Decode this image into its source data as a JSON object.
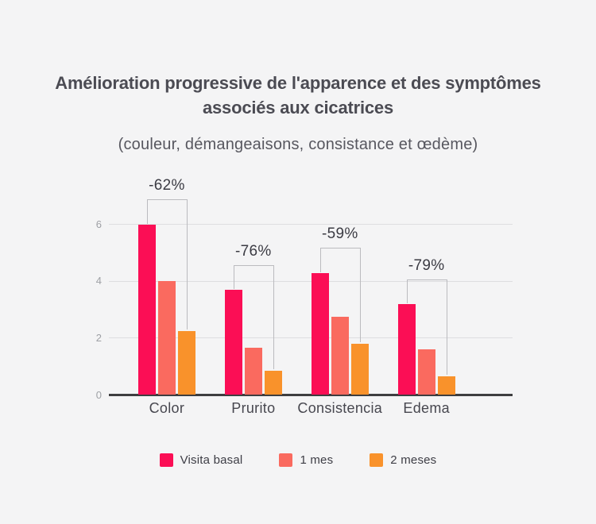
{
  "page": {
    "background_color": "#F4F4F5"
  },
  "header": {
    "title_line1": "Amélioration progressive de l'apparence et des symptômes",
    "title_line2": "associés aux cicatrices",
    "subtitle": "(couleur, démangeaisons, consistance et œdème)"
  },
  "chart_data": {
    "type": "bar",
    "title": "Amélioration progressive de l'apparence et des symptômes associés aux cicatrices",
    "subtitle": "(couleur, démangeaisons, consistance et œdème)",
    "xlabel": "",
    "ylabel": "",
    "categories": [
      "Color",
      "Prurito",
      "Consistencia",
      "Edema"
    ],
    "series": [
      {
        "name": "Visita basal",
        "color": "#FB0E55",
        "values": [
          6.0,
          3.7,
          4.3,
          3.2
        ]
      },
      {
        "name": "1 mes",
        "color": "#FA6A5F",
        "values": [
          4.0,
          1.65,
          2.75,
          1.6
        ]
      },
      {
        "name": "2 meses",
        "color": "#F9922B",
        "values": [
          2.25,
          0.85,
          1.8,
          0.65
        ]
      }
    ],
    "annotations": [
      {
        "category": "Color",
        "label": "-62%"
      },
      {
        "category": "Prurito",
        "label": "-76%"
      },
      {
        "category": "Consistencia",
        "label": "-59%"
      },
      {
        "category": "Edema",
        "label": "-79%"
      }
    ],
    "y_ticks": [
      0,
      2,
      4,
      6
    ],
    "ylim": [
      0,
      6.8
    ],
    "grid": true,
    "legend_position": "bottom"
  },
  "colors": {
    "background": "#F4F4F5",
    "title_text": "#4B4B53",
    "subtitle_text": "#57575F",
    "gridline": "#DDDDE0",
    "axis_line": "#3E3E40",
    "tick_label": "#9EA0A5",
    "bracket_line": "#BBBBBF",
    "category_label": "#47474F",
    "annotation_text": "#3B3B43",
    "legend_text": "#3D3D45"
  }
}
